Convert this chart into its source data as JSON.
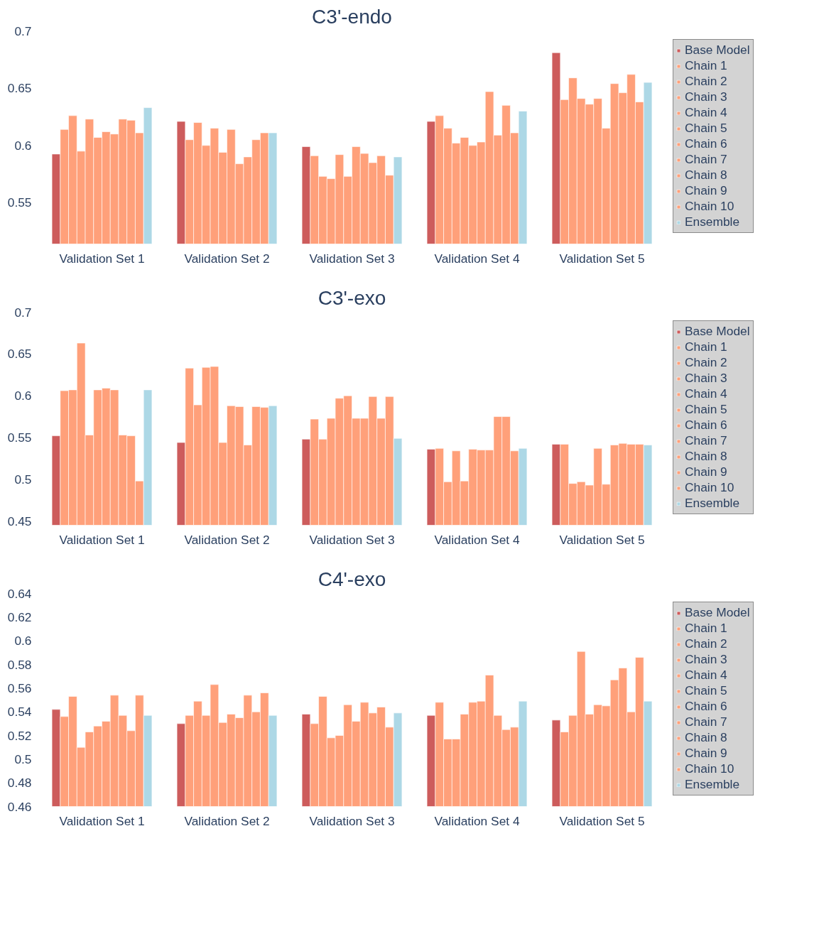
{
  "chart_data": [
    {
      "type": "bar",
      "title": "C3'-endo",
      "categories": [
        "Validation Set 1",
        "Validation Set 2",
        "Validation Set 3",
        "Validation Set 4",
        "Validation Set 5"
      ],
      "ylim": [
        0.514,
        0.7
      ],
      "yticks": [
        0.55,
        0.6,
        0.65,
        0.7
      ],
      "grid": false,
      "legend": "right",
      "series": [
        {
          "name": "Base Model",
          "color": "#cd5c5c",
          "values": [
            0.5925,
            0.621,
            0.599,
            0.621,
            0.681
          ]
        },
        {
          "name": "Chain 1",
          "color": "#ffa07a",
          "values": [
            0.614,
            0.605,
            0.591,
            0.626,
            0.64
          ]
        },
        {
          "name": "Chain 2",
          "color": "#ffa07a",
          "values": [
            0.626,
            0.62,
            0.573,
            0.615,
            0.659
          ]
        },
        {
          "name": "Chain 3",
          "color": "#ffa07a",
          "values": [
            0.595,
            0.6,
            0.571,
            0.602,
            0.641
          ]
        },
        {
          "name": "Chain 4",
          "color": "#ffa07a",
          "values": [
            0.623,
            0.615,
            0.592,
            0.607,
            0.636
          ]
        },
        {
          "name": "Chain 5",
          "color": "#ffa07a",
          "values": [
            0.607,
            0.594,
            0.573,
            0.6,
            0.641
          ]
        },
        {
          "name": "Chain 6",
          "color": "#ffa07a",
          "values": [
            0.612,
            0.614,
            0.599,
            0.603,
            0.615
          ]
        },
        {
          "name": "Chain 7",
          "color": "#ffa07a",
          "values": [
            0.61,
            0.584,
            0.593,
            0.647,
            0.654
          ]
        },
        {
          "name": "Chain 8",
          "color": "#ffa07a",
          "values": [
            0.623,
            0.59,
            0.585,
            0.609,
            0.646
          ]
        },
        {
          "name": "Chain 9",
          "color": "#ffa07a",
          "values": [
            0.622,
            0.605,
            0.591,
            0.635,
            0.662
          ]
        },
        {
          "name": "Chain 10",
          "color": "#ffa07a",
          "values": [
            0.611,
            0.611,
            0.574,
            0.611,
            0.638
          ]
        },
        {
          "name": "Ensemble",
          "color": "#add8e6",
          "values": [
            0.633,
            0.611,
            0.59,
            0.63,
            0.655
          ]
        }
      ]
    },
    {
      "type": "bar",
      "title": "C3'-exo",
      "categories": [
        "Validation Set 1",
        "Validation Set 2",
        "Validation Set 3",
        "Validation Set 4",
        "Validation Set 5"
      ],
      "ylim": [
        0.445,
        0.7
      ],
      "yticks": [
        0.45,
        0.5,
        0.55,
        0.6,
        0.65,
        0.7
      ],
      "grid": false,
      "legend": "right",
      "series": [
        {
          "name": "Base Model",
          "color": "#cd5c5c",
          "values": [
            0.552,
            0.544,
            0.548,
            0.536,
            0.542
          ]
        },
        {
          "name": "Chain 1",
          "color": "#ffa07a",
          "values": [
            0.606,
            0.633,
            0.572,
            0.537,
            0.542
          ]
        },
        {
          "name": "Chain 2",
          "color": "#ffa07a",
          "values": [
            0.607,
            0.589,
            0.548,
            0.497,
            0.495
          ]
        },
        {
          "name": "Chain 3",
          "color": "#ffa07a",
          "values": [
            0.663,
            0.634,
            0.573,
            0.534,
            0.497
          ]
        },
        {
          "name": "Chain 4",
          "color": "#ffa07a",
          "values": [
            0.553,
            0.635,
            0.597,
            0.498,
            0.493
          ]
        },
        {
          "name": "Chain 5",
          "color": "#ffa07a",
          "values": [
            0.607,
            0.544,
            0.6,
            0.536,
            0.537
          ]
        },
        {
          "name": "Chain 6",
          "color": "#ffa07a",
          "values": [
            0.609,
            0.588,
            0.573,
            0.535,
            0.494
          ]
        },
        {
          "name": "Chain 7",
          "color": "#ffa07a",
          "values": [
            0.607,
            0.587,
            0.573,
            0.535,
            0.541
          ]
        },
        {
          "name": "Chain 8",
          "color": "#ffa07a",
          "values": [
            0.553,
            0.541,
            0.599,
            0.575,
            0.543
          ]
        },
        {
          "name": "Chain 9",
          "color": "#ffa07a",
          "values": [
            0.552,
            0.587,
            0.573,
            0.575,
            0.542
          ]
        },
        {
          "name": "Chain 10",
          "color": "#ffa07a",
          "values": [
            0.498,
            0.586,
            0.599,
            0.534,
            0.542
          ]
        },
        {
          "name": "Ensemble",
          "color": "#add8e6",
          "values": [
            0.607,
            0.588,
            0.549,
            0.537,
            0.541
          ]
        }
      ]
    },
    {
      "type": "bar",
      "title": "C4'-exo",
      "categories": [
        "Validation Set 1",
        "Validation Set 2",
        "Validation Set 3",
        "Validation Set 4",
        "Validation Set 5"
      ],
      "ylim": [
        0.46,
        0.64
      ],
      "yticks": [
        0.46,
        0.48,
        0.5,
        0.52,
        0.54,
        0.56,
        0.58,
        0.6,
        0.62,
        0.64
      ],
      "grid": false,
      "legend": "right",
      "series": [
        {
          "name": "Base Model",
          "color": "#cd5c5c",
          "values": [
            0.542,
            0.53,
            0.538,
            0.537,
            0.533
          ]
        },
        {
          "name": "Chain 1",
          "color": "#ffa07a",
          "values": [
            0.536,
            0.537,
            0.53,
            0.548,
            0.523
          ]
        },
        {
          "name": "Chain 2",
          "color": "#ffa07a",
          "values": [
            0.553,
            0.549,
            0.553,
            0.517,
            0.537
          ]
        },
        {
          "name": "Chain 3",
          "color": "#ffa07a",
          "values": [
            0.51,
            0.537,
            0.518,
            0.517,
            0.591
          ]
        },
        {
          "name": "Chain 4",
          "color": "#ffa07a",
          "values": [
            0.523,
            0.563,
            0.52,
            0.538,
            0.538
          ]
        },
        {
          "name": "Chain 5",
          "color": "#ffa07a",
          "values": [
            0.528,
            0.531,
            0.546,
            0.548,
            0.546
          ]
        },
        {
          "name": "Chain 6",
          "color": "#ffa07a",
          "values": [
            0.532,
            0.538,
            0.532,
            0.549,
            0.545
          ]
        },
        {
          "name": "Chain 7",
          "color": "#ffa07a",
          "values": [
            0.554,
            0.535,
            0.548,
            0.571,
            0.567
          ]
        },
        {
          "name": "Chain 8",
          "color": "#ffa07a",
          "values": [
            0.537,
            0.554,
            0.539,
            0.537,
            0.577
          ]
        },
        {
          "name": "Chain 9",
          "color": "#ffa07a",
          "values": [
            0.524,
            0.54,
            0.544,
            0.525,
            0.54
          ]
        },
        {
          "name": "Chain 10",
          "color": "#ffa07a",
          "values": [
            0.554,
            0.556,
            0.527,
            0.527,
            0.586
          ]
        },
        {
          "name": "Ensemble",
          "color": "#add8e6",
          "values": [
            0.537,
            0.537,
            0.539,
            0.549,
            0.549
          ]
        }
      ]
    }
  ]
}
